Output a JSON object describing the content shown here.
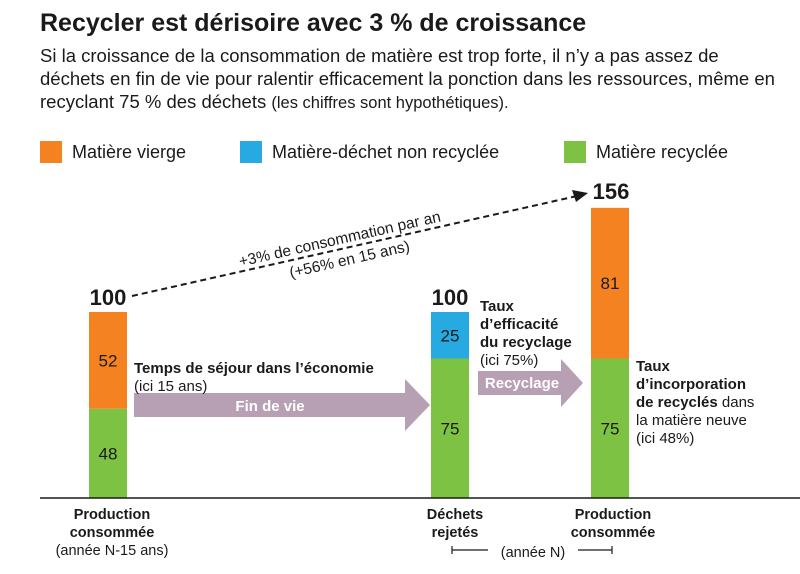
{
  "header": {
    "title": "Recycler est dérisoire avec 3 % de croissance",
    "subtitle_main": "Si la croissance de la consommation de matière est trop forte, il n’y a pas assez de déchets en fin de vie pour ralentir efficacement la ponction dans les ressources, même en recyclant 75 % des déchets",
    "subtitle_note": "(les chiffres sont hypothétiques)."
  },
  "colors": {
    "virgin": "#f58220",
    "waste": "#27a9e1",
    "recycled": "#7dc242",
    "arrow": "#b7a0b4"
  },
  "legend": [
    {
      "label": "Matière vierge",
      "color": "#f58220"
    },
    {
      "label": "Matière-déchet non recyclée",
      "color": "#27a9e1"
    },
    {
      "label": "Matière recyclée",
      "color": "#7dc242"
    }
  ],
  "chart_data": {
    "type": "bar",
    "stacked": true,
    "categories": [
      {
        "line1": "Production",
        "line2": "consommée",
        "line3": "(année N-15 ans)"
      },
      {
        "line1": "Déchets",
        "line2": "rejetés",
        "line3": ""
      },
      {
        "line1": "Production",
        "line2": "consommée",
        "line3": ""
      }
    ],
    "series": [
      {
        "name": "Matière recyclée",
        "values": [
          48,
          75,
          75
        ]
      },
      {
        "name": "Matière-déchet non recyclée",
        "values": [
          0,
          25,
          0
        ]
      },
      {
        "name": "Matière vierge",
        "values": [
          52,
          0,
          81
        ]
      }
    ],
    "totals": [
      "100",
      "100",
      "156"
    ],
    "period_label": "(année N)",
    "growth": {
      "line1": "+3% de consommation par an",
      "line2": "(+56% en 15 ans)"
    },
    "annotations": {
      "residence_title": "Temps de séjour dans l’économie",
      "residence_detail": "(ici 15 ans)",
      "end_of_life": "Fin de vie",
      "efficiency_line1": "Taux",
      "efficiency_line2": "d’efficacité",
      "efficiency_line3": "du recyclage",
      "efficiency_detail": "(ici 75%)",
      "recycling": "Recyclage",
      "incorporation_line1": "Taux",
      "incorporation_line2": "d’incorporation",
      "incorporation_line3a": "de recyclés",
      "incorporation_line3b": " dans",
      "incorporation_line4": "la matière neuve",
      "incorporation_detail": "(ici 48%)"
    }
  }
}
